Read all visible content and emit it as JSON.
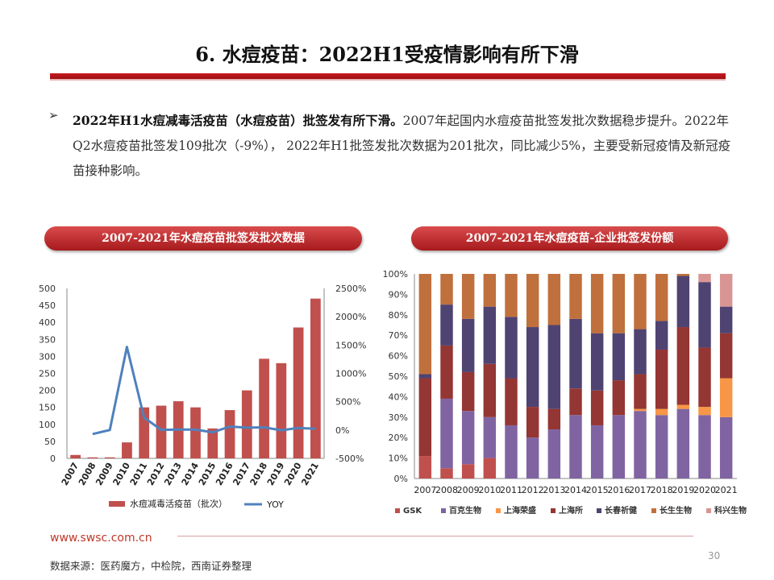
{
  "slide": {
    "title": "6. 水痘疫苗：2022H1受疫情影响有所下滑",
    "bullet_marker": "➢",
    "bullet_bold": "2022年H1水痘减毒活疫苗（水痘疫苗）批签发有所下滑。",
    "bullet_text": "2007年起国内水痘疫苗批签发批次数据稳步提升。2022年Q2水痘疫苗批签发109批次（-9%），  2022年H1批签发批次数据为201批次，同比减少5%，主要受新冠疫情及新冠疫苗接种影响。",
    "pill_left": "2007-2021年水痘疫苗批签发批次数据",
    "pill_right": "2007-2021年水痘疫苗-企业批签发份额",
    "footer_url": "www.swsc.com.cn",
    "footer_source": "数据来源：医药魔方，中检院，西南证券整理",
    "page_number": "30"
  },
  "chart_data": [
    {
      "type": "bar",
      "categories": [
        "2007",
        "2008",
        "2009",
        "2010",
        "2011",
        "2012",
        "2013",
        "2014",
        "2015",
        "2016",
        "2017",
        "2018",
        "2019",
        "2020",
        "2021"
      ],
      "series": [
        {
          "name": "水痘减毒活疫苗（批次）",
          "values": [
            10,
            3,
            3,
            47,
            150,
            155,
            168,
            150,
            88,
            142,
            200,
            293,
            280,
            385,
            470
          ],
          "color": "#c0504d",
          "axis": "left"
        },
        {
          "name": "YOY",
          "type": "line",
          "values": [
            null,
            -70,
            0,
            1467,
            219,
            3,
            8,
            7,
            -41,
            61,
            41,
            47,
            -4,
            38,
            22
          ],
          "color": "#4f81bd",
          "axis": "right"
        }
      ],
      "ylim": [
        0,
        500
      ],
      "yticks": [
        "0",
        "50",
        "100",
        "150",
        "200",
        "250",
        "300",
        "350",
        "400",
        "450",
        "500"
      ],
      "y2lim": [
        -500,
        2500
      ],
      "y2ticks": [
        "-500%",
        "0%",
        "500%",
        "1000%",
        "1500%",
        "2000%",
        "2500%"
      ],
      "legend_position": "bottom"
    },
    {
      "type": "bar",
      "stacked": true,
      "categories": [
        "2007",
        "2008",
        "2009",
        "2010",
        "2011",
        "2012",
        "2013",
        "2014",
        "2015",
        "2016",
        "2017",
        "2018",
        "2019",
        "2020",
        "2021"
      ],
      "series": [
        {
          "name": "GSK",
          "color": "#c0504d",
          "values": [
            11,
            5,
            7,
            10,
            0,
            0,
            0,
            0,
            0,
            0,
            0,
            0,
            0,
            0,
            0
          ]
        },
        {
          "name": "百克生物",
          "color": "#8064a2",
          "values": [
            0,
            34,
            26,
            20,
            26,
            20,
            24,
            31,
            26,
            31,
            33,
            31,
            34,
            31,
            30
          ]
        },
        {
          "name": "上海荣盛",
          "color": "#f79646",
          "values": [
            0,
            0,
            0,
            0,
            0,
            0,
            0,
            0,
            0,
            0,
            1,
            3,
            2,
            4,
            19
          ]
        },
        {
          "name": "上海所",
          "color": "#943634",
          "values": [
            38,
            26,
            19,
            26,
            23,
            15,
            10,
            13,
            17,
            17,
            17,
            29,
            38,
            29,
            22
          ]
        },
        {
          "name": "长春祈健",
          "color": "#4f4372",
          "values": [
            2,
            20,
            26,
            28,
            30,
            39,
            41,
            34,
            28,
            23,
            22,
            14,
            25,
            32,
            13
          ]
        },
        {
          "name": "长生生物",
          "color": "#c0703c",
          "values": [
            49,
            15,
            22,
            16,
            21,
            26,
            25,
            22,
            29,
            29,
            27,
            23,
            1,
            0,
            0
          ]
        },
        {
          "name": "科兴生物",
          "color": "#d99594",
          "values": [
            0,
            0,
            0,
            0,
            0,
            0,
            0,
            0,
            0,
            0,
            0,
            0,
            0,
            4,
            16
          ]
        }
      ],
      "ylim": [
        0,
        100
      ],
      "yticks": [
        "0%",
        "10%",
        "20%",
        "30%",
        "40%",
        "50%",
        "60%",
        "70%",
        "80%",
        "90%",
        "100%"
      ],
      "legend_position": "bottom"
    }
  ]
}
